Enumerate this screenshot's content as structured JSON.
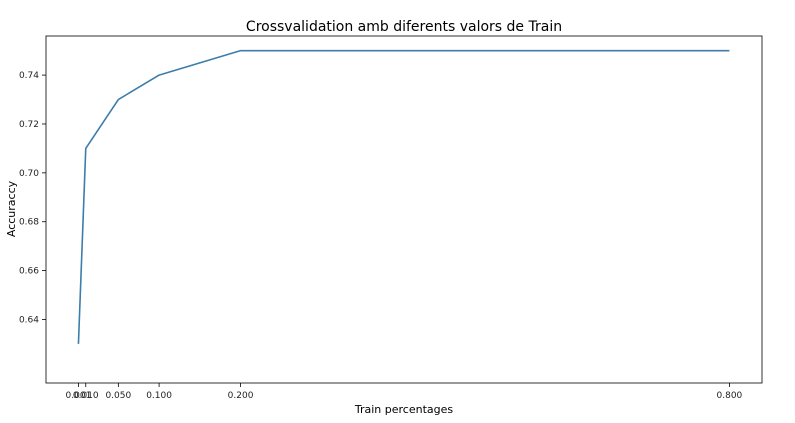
{
  "chart_data": {
    "type": "line",
    "title": "Crossvalidation amb diferents valors de Train",
    "xlabel": "Train percentages",
    "ylabel": "Accuraccy",
    "x": [
      0.001,
      0.01,
      0.05,
      0.1,
      0.2,
      0.8
    ],
    "x_tick_labels": [
      "0.001",
      "0.010",
      "0.050",
      "0.100",
      "0.200",
      "0.800"
    ],
    "y": [
      0.63,
      0.71,
      0.73,
      0.74,
      0.75,
      0.75
    ],
    "y_ticks": [
      0.64,
      0.66,
      0.68,
      0.7,
      0.72,
      0.74
    ],
    "y_tick_labels": [
      "0.64",
      "0.66",
      "0.68",
      "0.70",
      "0.72",
      "0.74"
    ],
    "xlim": [
      -0.0388,
      0.84
    ],
    "ylim": [
      0.614,
      0.756
    ],
    "grid": false,
    "legend": "none",
    "line_color": "#3b7dab"
  }
}
